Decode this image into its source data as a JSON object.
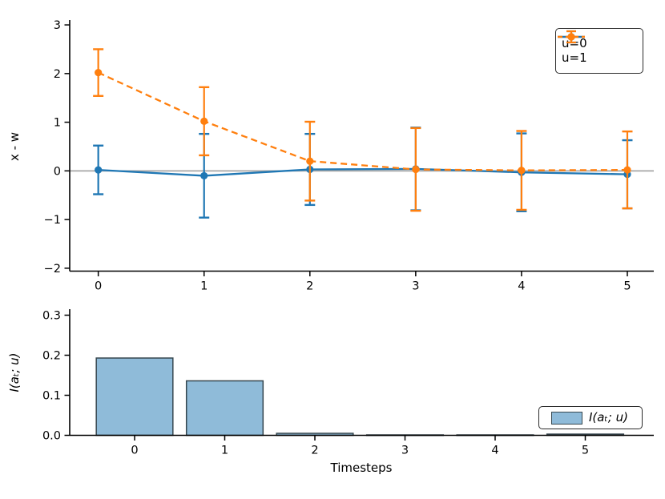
{
  "figure": {
    "colors": {
      "blue": "#1f77b4",
      "orange": "#ff7f0e",
      "bar_fill": "#8fbbd9",
      "bar_edge": "#37474f",
      "zero_line": "#a6a6a6",
      "axis": "#000000"
    }
  },
  "chart_data": [
    {
      "type": "line",
      "subtype": "errorbar",
      "ylabel": "x - w",
      "xlabel": "",
      "x": [
        0,
        1,
        2,
        3,
        4,
        5
      ],
      "xticks": [
        0,
        1,
        2,
        3,
        4,
        5
      ],
      "xticklabels": [
        "0",
        "1",
        "2",
        "3",
        "4",
        "5"
      ],
      "yticks": [
        -2,
        -1,
        0,
        1,
        2,
        3
      ],
      "yticklabels": [
        "−2",
        "−1",
        "0",
        "1",
        "2",
        "3"
      ],
      "xlim": [
        -0.27,
        5.25
      ],
      "ylim": [
        -2.06,
        3.1
      ],
      "zero_line": true,
      "legend_position": "upper right",
      "series": [
        {
          "name": "u=0",
          "style": "solid",
          "color": "#1f77b4",
          "values": [
            0.02,
            -0.1,
            0.03,
            0.04,
            -0.03,
            -0.07
          ],
          "yerr": [
            0.5,
            0.86,
            0.73,
            0.85,
            0.8,
            0.7
          ]
        },
        {
          "name": "u=1",
          "style": "dashed",
          "color": "#ff7f0e",
          "values": [
            2.02,
            1.02,
            0.2,
            0.03,
            0.01,
            0.02
          ],
          "yerr": [
            0.48,
            0.7,
            0.81,
            0.85,
            0.81,
            0.79
          ]
        }
      ]
    },
    {
      "type": "bar",
      "ylabel": "I(aₜ; u)",
      "xlabel": "Timesteps",
      "categories": [
        "0",
        "1",
        "2",
        "3",
        "4",
        "5"
      ],
      "values": [
        0.193,
        0.136,
        0.005,
        0.001,
        0.001,
        0.003
      ],
      "yticks": [
        0.0,
        0.1,
        0.2,
        0.3
      ],
      "yticklabels": [
        "0.0",
        "0.1",
        "0.2",
        "0.3"
      ],
      "xlim": [
        -0.72,
        5.76
      ],
      "ylim": [
        0,
        0.315
      ],
      "bar_width": 0.85,
      "legend": "I(aₜ; u)",
      "legend_position": "lower right"
    }
  ]
}
